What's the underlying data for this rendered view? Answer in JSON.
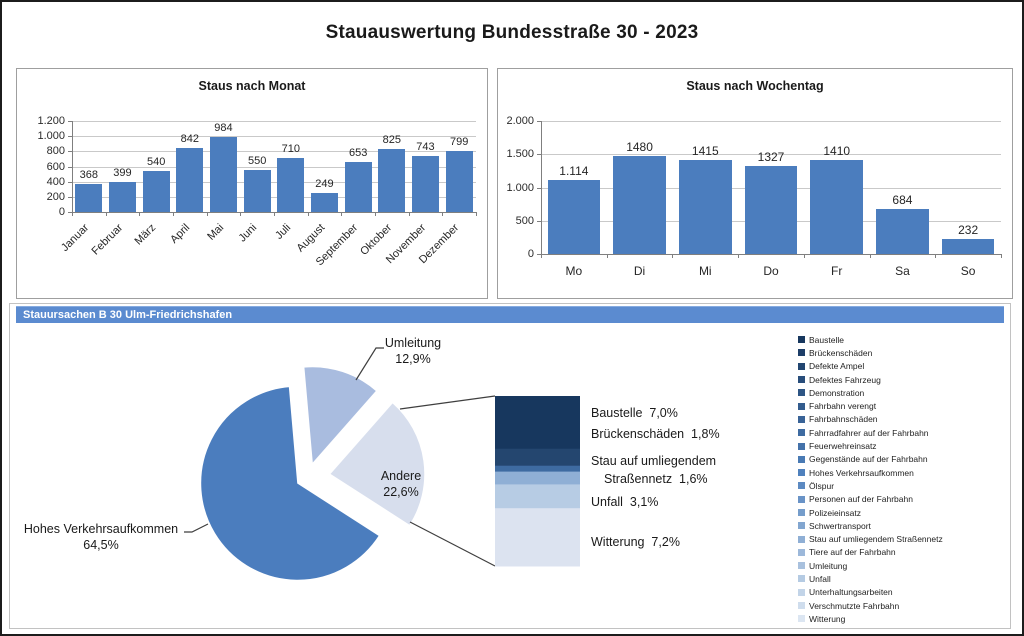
{
  "page": {
    "title": "Stauauswertung Bundesstraße 30 - 2023"
  },
  "chart_data": [
    {
      "type": "bar",
      "name": "staus-nach-monat",
      "title": "Staus nach Monat",
      "categories": [
        "Januar",
        "Februar",
        "März",
        "April",
        "Mai",
        "Juni",
        "Juli",
        "August",
        "September",
        "Oktober",
        "November",
        "Dezember"
      ],
      "values": [
        368,
        399,
        540,
        842,
        984,
        550,
        710,
        249,
        653,
        825,
        743,
        799
      ],
      "data_labels": [
        "368",
        "399",
        "540",
        "842",
        "984",
        "550",
        "710",
        "249",
        "653",
        "825",
        "743",
        "799"
      ],
      "ylim": [
        0,
        1200
      ],
      "yticks": [
        {
          "label": "1.200",
          "value": 1200
        },
        {
          "label": "1.000",
          "value": 1000
        },
        {
          "label": "800",
          "value": 800
        },
        {
          "label": "600",
          "value": 600
        },
        {
          "label": "400",
          "value": 400
        },
        {
          "label": "200",
          "value": 200
        },
        {
          "label": "0",
          "value": 0
        }
      ],
      "grid": true,
      "legend": "none",
      "bar_color": "#4b7dbe"
    },
    {
      "type": "bar",
      "name": "staus-nach-wochentag",
      "title": "Staus nach Wochentag",
      "categories": [
        "Mo",
        "Di",
        "Mi",
        "Do",
        "Fr",
        "Sa",
        "So"
      ],
      "values": [
        1114,
        1480,
        1415,
        1327,
        1410,
        684,
        232
      ],
      "data_labels": [
        "1.114",
        "1480",
        "1415",
        "1327",
        "1410",
        "684",
        "232"
      ],
      "ylim": [
        0,
        2000
      ],
      "yticks": [
        {
          "label": "2.000",
          "value": 2000
        },
        {
          "label": "1.500",
          "value": 1500
        },
        {
          "label": "1.000",
          "value": 1000
        },
        {
          "label": "500",
          "value": 500
        },
        {
          "label": "0",
          "value": 0
        }
      ],
      "grid": true,
      "legend": "none",
      "bar_color": "#4b7dbe"
    },
    {
      "type": "pie-of-bar",
      "name": "stauursachen",
      "title": "Stauursachen B 30 Ulm-Friedrichshafen",
      "slices": [
        {
          "name": "Hohes Verkehrsaufkommen",
          "value_pct": 64.5,
          "label_lines": [
            "Hohes Verkehrsaufkommen",
            "64,5%"
          ],
          "color": "#4b7dbe"
        },
        {
          "name": "Umleitung",
          "value_pct": 12.9,
          "label_lines": [
            "Umleitung",
            "12,9%"
          ],
          "color": "#a9bcdf"
        },
        {
          "name": "Andere",
          "value_pct": 22.6,
          "label_lines": [
            "Andere",
            "22,6%"
          ],
          "color": "#d7deed"
        }
      ],
      "bar_breakdown": [
        {
          "name": "Baustelle",
          "value_pct": 7.0,
          "lines": [
            "Baustelle  7,0%"
          ]
        },
        {
          "name": "Brückenschäden",
          "value_pct": 1.8,
          "lines": [
            "Brückenschäden  1,8%"
          ]
        },
        {
          "name": "Stau auf umliegendem Straßennetz",
          "value_pct": 1.6,
          "lines": [
            "Stau auf umliegendem",
            "Straßennetz  1,6%"
          ]
        },
        {
          "name": "Unfall",
          "value_pct": 3.1,
          "lines": [
            "Unfall  3,1%"
          ]
        },
        {
          "name": "Witterung",
          "value_pct": 7.2,
          "lines": [
            "Witterung  7,2%"
          ]
        }
      ],
      "bar_segments": [
        {
          "name": "baustelle",
          "color": "#17375e",
          "frac": 0.31
        },
        {
          "name": "brueckenschaeden",
          "color": "#24466f",
          "frac": 0.1
        },
        {
          "name": "other-small",
          "color": "#3e6ba1",
          "frac": 0.035
        },
        {
          "name": "stau-umliegend",
          "color": "#8fafd5",
          "frac": 0.075
        },
        {
          "name": "unfall",
          "color": "#b7cce4",
          "frac": 0.14
        },
        {
          "name": "witterung",
          "color": "#dce3f0",
          "frac": 0.34
        }
      ],
      "legend": [
        {
          "label": "Baustelle",
          "color": "#17375e"
        },
        {
          "label": "Brückenschäden",
          "color": "#1d3e68"
        },
        {
          "label": "Defekte Ampel",
          "color": "#224671"
        },
        {
          "label": "Defektes Fahrzeug",
          "color": "#284d7b"
        },
        {
          "label": "Demonstration",
          "color": "#2d5584"
        },
        {
          "label": "Fahrbahn verengt",
          "color": "#335c8e"
        },
        {
          "label": "Fahrbahnschäden",
          "color": "#396397"
        },
        {
          "label": "Fahrradfahrer auf der Fahrbahn",
          "color": "#3e6ba1"
        },
        {
          "label": "Feuerwehreinsatz",
          "color": "#4472aa"
        },
        {
          "label": "Gegenstände auf der Fahrbahn",
          "color": "#497ab4"
        },
        {
          "label": "Hohes Verkehrsaufkommen",
          "color": "#4f81bd"
        },
        {
          "label": "Ölspur",
          "color": "#5c8ac2"
        },
        {
          "label": "Personen auf der Fahrbahn",
          "color": "#6993c7"
        },
        {
          "label": "Polizeieinsatz",
          "color": "#759dcb"
        },
        {
          "label": "Schwertransport",
          "color": "#82a6d0"
        },
        {
          "label": "Stau auf umliegendem Straßennetz",
          "color": "#8fafd5"
        },
        {
          "label": "Tiere auf der Fahrbahn",
          "color": "#9cb8da"
        },
        {
          "label": "Umleitung",
          "color": "#a9c1de"
        },
        {
          "label": "Unfall",
          "color": "#b5cbe3"
        },
        {
          "label": "Unterhaltungsarbeiten",
          "color": "#c2d4e8"
        },
        {
          "label": "Verschmutzte Fahrbahn",
          "color": "#cfdded"
        },
        {
          "label": "Witterung",
          "color": "#dce6f2"
        }
      ]
    }
  ]
}
